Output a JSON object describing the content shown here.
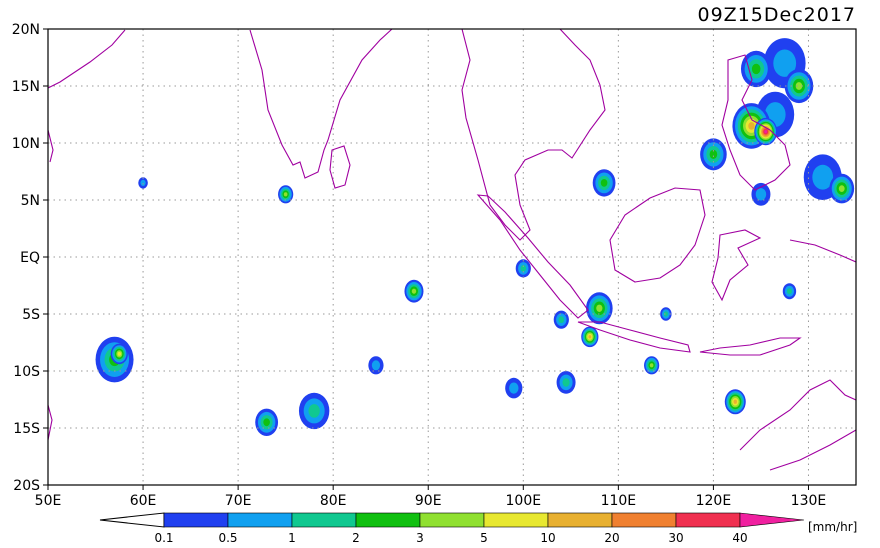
{
  "map": {
    "title": "09Z15Dec2017",
    "lon_range": [
      50,
      135
    ],
    "lat_range": [
      -20,
      20
    ],
    "lon_ticks": [
      {
        "value": 50,
        "label": "50E"
      },
      {
        "value": 60,
        "label": "60E"
      },
      {
        "value": 70,
        "label": "70E"
      },
      {
        "value": 80,
        "label": "80E"
      },
      {
        "value": 90,
        "label": "90E"
      },
      {
        "value": 100,
        "label": "100E"
      },
      {
        "value": 110,
        "label": "110E"
      },
      {
        "value": 120,
        "label": "120E"
      },
      {
        "value": 130,
        "label": "130E"
      }
    ],
    "lat_ticks": [
      {
        "value": 20,
        "label": "20N"
      },
      {
        "value": 15,
        "label": "15N"
      },
      {
        "value": 10,
        "label": "10N"
      },
      {
        "value": 5,
        "label": "5N"
      },
      {
        "value": 0,
        "label": "EQ"
      },
      {
        "value": -5,
        "label": "5S"
      },
      {
        "value": -10,
        "label": "10S"
      },
      {
        "value": -15,
        "label": "15S"
      },
      {
        "value": -20,
        "label": "20S"
      }
    ],
    "grid": "dotted",
    "coastline_color": "#a000a0"
  },
  "colorbar": {
    "unit": "[mm/hr]",
    "labels": [
      "0.1",
      "0.5",
      "1",
      "2",
      "3",
      "5",
      "10",
      "20",
      "30",
      "40"
    ],
    "colors": [
      "#2040f0",
      "#10a0f0",
      "#10c890",
      "#10c010",
      "#90e030",
      "#e8e830",
      "#e8b030",
      "#f08030",
      "#f03050",
      "#f020a0"
    ]
  },
  "rain_cells": [
    {
      "lon": 127.5,
      "lat": 17.0,
      "r": 2.2,
      "level": 1
    },
    {
      "lon": 124.5,
      "lat": 16.5,
      "r": 1.6,
      "level": 3
    },
    {
      "lon": 129.0,
      "lat": 15.0,
      "r": 1.5,
      "level": 4
    },
    {
      "lon": 126.5,
      "lat": 12.5,
      "r": 2.0,
      "level": 1
    },
    {
      "lon": 124.0,
      "lat": 11.5,
      "r": 2.0,
      "level": 6
    },
    {
      "lon": 125.5,
      "lat": 11.0,
      "r": 1.2,
      "level": 9
    },
    {
      "lon": 120.0,
      "lat": 9.0,
      "r": 1.4,
      "level": 3
    },
    {
      "lon": 131.5,
      "lat": 7.0,
      "r": 2.0,
      "level": 1
    },
    {
      "lon": 133.5,
      "lat": 6.0,
      "r": 1.3,
      "level": 4
    },
    {
      "lon": 125.0,
      "lat": 5.5,
      "r": 1.0,
      "level": 1
    },
    {
      "lon": 108.5,
      "lat": 6.5,
      "r": 1.2,
      "level": 3
    },
    {
      "lon": 108.0,
      "lat": -4.5,
      "r": 1.4,
      "level": 4
    },
    {
      "lon": 107.0,
      "lat": -7.0,
      "r": 0.9,
      "level": 6
    },
    {
      "lon": 122.3,
      "lat": -12.7,
      "r": 1.1,
      "level": 6
    },
    {
      "lon": 57.0,
      "lat": -9.0,
      "r": 2.0,
      "level": 3
    },
    {
      "lon": 57.5,
      "lat": -8.5,
      "r": 0.9,
      "level": 5
    },
    {
      "lon": 78.0,
      "lat": -13.5,
      "r": 1.6,
      "level": 2
    },
    {
      "lon": 73.0,
      "lat": -14.5,
      "r": 1.2,
      "level": 3
    },
    {
      "lon": 88.5,
      "lat": -3.0,
      "r": 1.0,
      "level": 4
    },
    {
      "lon": 100.0,
      "lat": -1.0,
      "r": 0.8,
      "level": 2
    },
    {
      "lon": 104.0,
      "lat": -5.5,
      "r": 0.8,
      "level": 2
    },
    {
      "lon": 104.5,
      "lat": -11.0,
      "r": 1.0,
      "level": 2
    },
    {
      "lon": 99.0,
      "lat": -11.5,
      "r": 0.9,
      "level": 1
    },
    {
      "lon": 113.5,
      "lat": -9.5,
      "r": 0.8,
      "level": 4
    },
    {
      "lon": 75.0,
      "lat": 5.5,
      "r": 0.8,
      "level": 4
    },
    {
      "lon": 60.0,
      "lat": 6.5,
      "r": 0.5,
      "level": 1
    },
    {
      "lon": 115.0,
      "lat": -5.0,
      "r": 0.6,
      "level": 2
    },
    {
      "lon": 128.0,
      "lat": -3.0,
      "r": 0.7,
      "level": 2
    },
    {
      "lon": 84.5,
      "lat": -9.5,
      "r": 0.8,
      "level": 1
    }
  ]
}
